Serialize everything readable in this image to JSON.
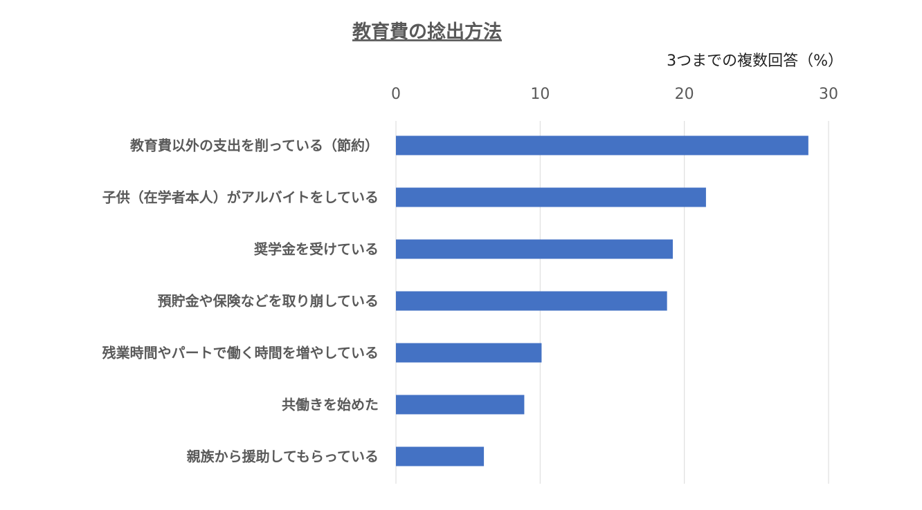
{
  "chart_data": {
    "type": "bar",
    "orientation": "horizontal",
    "title": "教育費の捻出方法",
    "xlabel": "3つまでの複数回答（%）",
    "xlim": [
      0,
      30
    ],
    "xticks": [
      0,
      10,
      20,
      30
    ],
    "grid": true,
    "bar_color": "#4472C4",
    "categories": [
      "教育費以外の支出を削っている（節約）",
      "子供（在学者本人）がアルバイトをしている",
      "奨学金を受けている",
      "預貯金や保険などを取り崩している",
      "残業時間やパートで働く時間を増やしている",
      "共働きを始めた",
      "親族から援助してもらっている"
    ],
    "values": [
      28.6,
      21.5,
      19.2,
      18.8,
      10.1,
      8.9,
      6.1
    ]
  }
}
